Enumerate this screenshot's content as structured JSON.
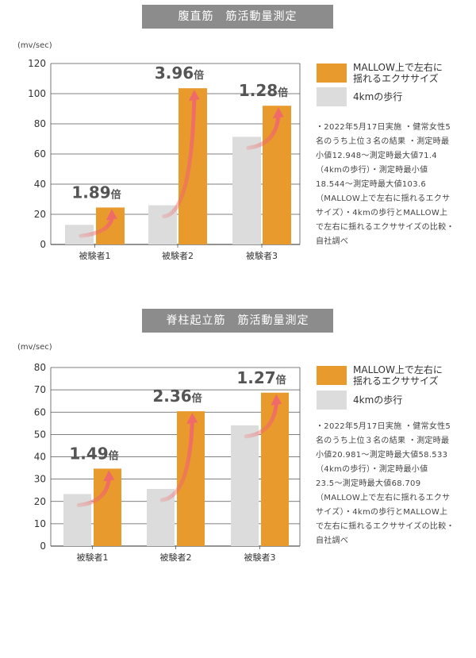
{
  "colors": {
    "orange": "#E89A2C",
    "gray": "#DCDCDC",
    "arrow": "#F06A6A",
    "title_bg": "#8C8C8C"
  },
  "legend": {
    "mallow": "MALLOW上で左右に\n揺れるエクササイズ",
    "walk": "4kmの歩行"
  },
  "chart_data": [
    {
      "type": "bar",
      "title": "腹直筋　筋活動量測定",
      "ylabel": "(mv/sec)",
      "ylim": [
        0,
        120
      ],
      "yticks": [
        0,
        20,
        40,
        60,
        80,
        100,
        120
      ],
      "categories": [
        "被験者1",
        "被験者2",
        "被験者3"
      ],
      "series": [
        {
          "name": "4kmの歩行",
          "values": [
            13,
            26,
            71.4
          ]
        },
        {
          "name": "MALLOW上で左右に揺れるエクササイズ",
          "values": [
            24.5,
            103.6,
            92
          ]
        }
      ],
      "ratio_labels": [
        "1.89倍",
        "3.96倍",
        "1.28倍"
      ],
      "note": "・2022年5月17日実施 ・健常女性5名のうち上位３名の結果 ・測定時最小値12.948〜測定時最大値71.4（4kmの歩行）・測定時最小値18.544〜測定時最大値103.6（MALLOW上で左右に揺れるエクササイズ）・4kmの歩行とMALLOW上で左右に揺れるエクササイズの比較・自社調べ"
    },
    {
      "type": "bar",
      "title": "脊柱起立筋　筋活動量測定",
      "ylabel": "(mv/sec)",
      "ylim": [
        0,
        80
      ],
      "yticks": [
        0,
        10,
        20,
        30,
        40,
        50,
        60,
        70,
        80
      ],
      "categories": [
        "被験者1",
        "被験者2",
        "被験者3"
      ],
      "series": [
        {
          "name": "4kmの歩行",
          "values": [
            23.3,
            25.6,
            54.1
          ]
        },
        {
          "name": "MALLOW上で左右に揺れるエクササイズ",
          "values": [
            34.7,
            60.4,
            68.709
          ]
        }
      ],
      "ratio_labels": [
        "1.49倍",
        "2.36倍",
        "1.27倍"
      ],
      "note": "・2022年5月17日実施 ・健常女性5名のうち上位３名の結果 ・測定時最小値20.981〜測定時最大値58.533（4kmの歩行）・測定時最小値23.5〜測定時最大値68.709（MALLOW上で左右に揺れるエクササイズ）・4kmの歩行とMALLOW上で左右に揺れるエクササイズの比較・自社調べ"
    }
  ]
}
